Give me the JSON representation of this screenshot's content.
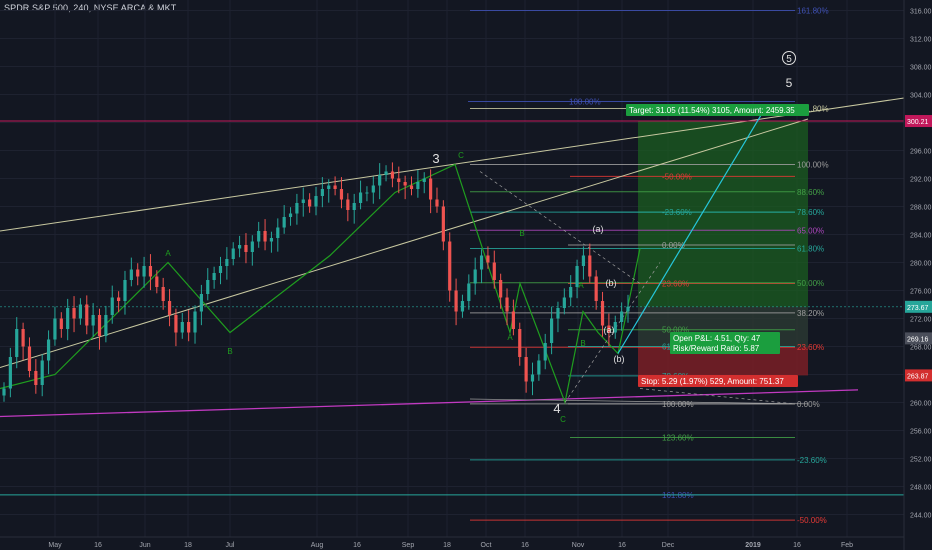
{
  "header": {
    "symbol_line": "SPDR S&P 500, 240, NYSE ARCA & MKT"
  },
  "colors": {
    "background": "#131722",
    "grid": "#1e2230",
    "up_candle": "#26a69a",
    "down_candle": "#ef5350",
    "axis_text": "#a3a6af",
    "pattern": "#1f9e1f",
    "trendline": "#c8c8a0",
    "support": "#c13ac1",
    "profit_zone": "#1b5e20",
    "loss_zone": "#7a1f26",
    "projection": "#26c6da"
  },
  "chart_data": {
    "type": "candlestick",
    "title": "SPDR S&P 500, 240, NYSE ARCA & MKT",
    "ylim": [
      242.5,
      317.5
    ],
    "y_ticks": [
      316,
      312,
      308,
      304,
      300,
      296,
      292,
      288,
      284,
      280,
      276,
      272,
      268,
      264,
      260,
      256,
      252,
      248,
      244
    ],
    "x_ticks": [
      "May",
      "16",
      "Jun",
      "18",
      "Jul",
      "Aug",
      "16",
      "Sep",
      "18",
      "Oct",
      "16",
      "Nov",
      "16",
      "Dec",
      "2019",
      "16",
      "Feb"
    ],
    "price_labels": [
      {
        "text": "300.21",
        "value": 300.21,
        "color": "#c2185b"
      },
      {
        "text": "273.67",
        "value": 273.67,
        "color": "#26a69a"
      },
      {
        "text": "269.16",
        "value": 269.16,
        "color": "#4a4e5a"
      },
      {
        "text": "263.87",
        "value": 263.87,
        "color": "#d32f2f"
      }
    ],
    "close_series": [
      262.0,
      266.5,
      270.5,
      268.0,
      264.5,
      262.5,
      266.0,
      269.0,
      272.0,
      270.5,
      273.5,
      272.0,
      274.0,
      271.0,
      272.5,
      269.5,
      272.5,
      275.0,
      274.5,
      277.5,
      279.0,
      278.0,
      279.5,
      278.0,
      276.5,
      274.5,
      272.5,
      270.0,
      271.5,
      270.0,
      273.0,
      275.5,
      277.5,
      278.5,
      279.5,
      280.5,
      282.0,
      282.5,
      281.5,
      283.0,
      284.5,
      283.0,
      283.5,
      285.0,
      286.5,
      287.0,
      288.5,
      289.0,
      288.0,
      289.5,
      290.5,
      291.0,
      290.5,
      289.0,
      287.5,
      288.5,
      290.0,
      290.0,
      291.0,
      292.5,
      293.0,
      292.0,
      291.5,
      291.0,
      290.5,
      291.5,
      292.0,
      289.0,
      288.0,
      283.0,
      276.0,
      273.0,
      274.5,
      277.0,
      279.0,
      281.0,
      280.0,
      277.5,
      275.0,
      273.0,
      270.5,
      266.5,
      263.0,
      264.0,
      266.0,
      268.5,
      272.0,
      273.5,
      275.0,
      276.5,
      279.5,
      281.0,
      278.0,
      274.5,
      271.0,
      270.0,
      271.5,
      273.0,
      273.67
    ],
    "wave_labels": [
      "3",
      "4",
      "5",
      "C",
      "A",
      "B",
      "A",
      "B",
      "C",
      "A",
      "B",
      "(a)",
      "(b)",
      "(a)",
      "(b)"
    ],
    "fib_levels": [
      {
        "label": "161.80%",
        "value": 316.0,
        "color": "#3f51b5"
      },
      {
        "label": "100.00%",
        "value": 303.0,
        "color": "#3f51b5"
      },
      {
        "label": "161.80%",
        "value": 302.0,
        "color": "#c8c8a0"
      },
      {
        "label": "100.00%",
        "value": 294.0,
        "color": "#9e9e9e"
      },
      {
        "label": "-50.00%",
        "value": 292.3,
        "color": "#e53935"
      },
      {
        "label": "88.60%",
        "value": 290.1,
        "color": "#43a047"
      },
      {
        "label": "-23.60%",
        "value": 287.2,
        "color": "#26a69a"
      },
      {
        "label": "78.60%",
        "value": 287.2,
        "color": "#26a69a"
      },
      {
        "label": "65.00%",
        "value": 284.6,
        "color": "#ab47bc"
      },
      {
        "label": "0.00%",
        "value": 282.5,
        "color": "#9e9e9e"
      },
      {
        "label": "61.80%",
        "value": 282.0,
        "color": "#26a69a"
      },
      {
        "label": "23.60%",
        "value": 277.0,
        "color": "#e53935"
      },
      {
        "label": "50.00%",
        "value": 277.1,
        "color": "#43a047"
      },
      {
        "label": "38.20%",
        "value": 272.8,
        "color": "#9e9e9e"
      },
      {
        "label": "50.00%",
        "value": 270.4,
        "color": "#43a047"
      },
      {
        "label": "23.60%",
        "value": 267.9,
        "color": "#e53935"
      },
      {
        "label": "61.80%",
        "value": 268.0,
        "color": "#26a69a"
      },
      {
        "label": "78.60%",
        "value": 263.8,
        "color": "#26a69a"
      },
      {
        "label": "100.00%",
        "value": 259.8,
        "color": "#9e9e9e"
      },
      {
        "label": "0.00%",
        "value": 259.8,
        "color": "#9e9e9e"
      },
      {
        "label": "123.60%",
        "value": 255.0,
        "color": "#43a047"
      },
      {
        "label": "-23.60%",
        "value": 251.8,
        "color": "#26a69a"
      },
      {
        "label": "161.80%",
        "value": 246.8,
        "color": "#3f51b5"
      },
      {
        "label": "-50.00%",
        "value": 243.2,
        "color": "#e53935"
      }
    ],
    "annotations": {
      "target": "Target: 31.05 (11.54%) 3105, Amount: 2459.35",
      "open_pl": "Open P&L: 4.51, Qty: 47",
      "risk_reward": "Risk/Reward Ratio: 5.87",
      "stop": "Stop: 5.29 (1.97%) 529, Amount: 751.37",
      "wave5_marker": "5"
    }
  }
}
